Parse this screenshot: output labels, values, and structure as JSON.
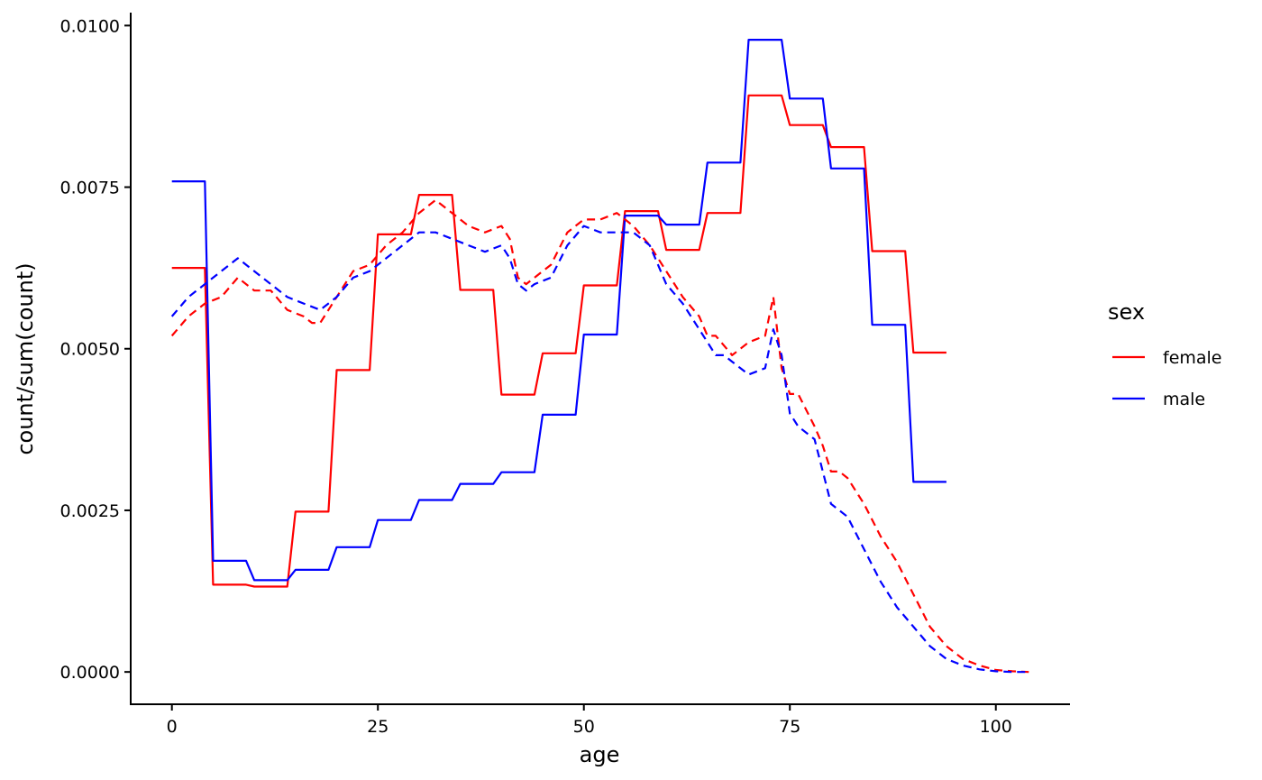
{
  "chart_data": {
    "type": "line",
    "title": "",
    "xlabel": "age",
    "ylabel": "count/sum(count)",
    "xlim": [
      -5,
      109
    ],
    "ylim": [
      -0.0005,
      0.0102
    ],
    "x_ticks": [
      0,
      25,
      50,
      75,
      100
    ],
    "x_tick_labels": [
      "0",
      "25",
      "50",
      "75",
      "100"
    ],
    "y_ticks": [
      0,
      0.0025,
      0.005,
      0.0075,
      0.01
    ],
    "y_tick_labels": [
      "0.0000",
      "0.0025",
      "0.0050",
      "0.0075",
      "0.0100"
    ],
    "grid": false,
    "legend": {
      "title": "sex",
      "position": "right",
      "entries": [
        {
          "label": "female",
          "color": "#ff0000"
        },
        {
          "label": "male",
          "color": "#0000ff"
        }
      ]
    },
    "series": [
      {
        "name": "female",
        "color": "#ff0000",
        "linetype": "solid",
        "x": [
          0,
          4,
          5,
          9,
          10,
          14,
          15,
          19,
          20,
          24,
          25,
          29,
          30,
          34,
          35,
          39,
          40,
          44,
          45,
          49,
          50,
          54,
          55,
          59,
          60,
          64,
          65,
          69,
          70,
          74,
          75,
          79,
          80,
          84,
          85,
          89,
          90,
          94
        ],
        "y": [
          0.00625,
          0.00625,
          0.00135,
          0.00135,
          0.00132,
          0.00132,
          0.00248,
          0.00248,
          0.00467,
          0.00467,
          0.00677,
          0.00677,
          0.00738,
          0.00738,
          0.00591,
          0.00591,
          0.00429,
          0.00429,
          0.00493,
          0.00493,
          0.00598,
          0.00598,
          0.00713,
          0.00713,
          0.00653,
          0.00653,
          0.0071,
          0.0071,
          0.00892,
          0.00892,
          0.00846,
          0.00846,
          0.00812,
          0.00812,
          0.00651,
          0.00651,
          0.00494,
          0.00494
        ]
      },
      {
        "name": "male",
        "color": "#0000ff",
        "linetype": "solid",
        "x": [
          0,
          4,
          5,
          9,
          10,
          14,
          15,
          19,
          20,
          24,
          25,
          29,
          30,
          34,
          35,
          39,
          40,
          44,
          45,
          49,
          50,
          54,
          55,
          59,
          60,
          64,
          65,
          69,
          70,
          74,
          75,
          79,
          80,
          84,
          85,
          89,
          90,
          94
        ],
        "y": [
          0.00759,
          0.00759,
          0.00172,
          0.00172,
          0.00142,
          0.00142,
          0.00158,
          0.00158,
          0.00193,
          0.00193,
          0.00235,
          0.00235,
          0.00266,
          0.00266,
          0.00291,
          0.00291,
          0.00309,
          0.00309,
          0.00398,
          0.00398,
          0.00522,
          0.00522,
          0.00706,
          0.00706,
          0.00692,
          0.00692,
          0.00788,
          0.00788,
          0.00978,
          0.00978,
          0.00887,
          0.00887,
          0.00779,
          0.00779,
          0.00537,
          0.00537,
          0.00294,
          0.00294
        ]
      },
      {
        "name": "female",
        "color": "#ff0000",
        "linetype": "dashed",
        "x": [
          0,
          2,
          4,
          6,
          8,
          10,
          12,
          14,
          16,
          17,
          18,
          20,
          22,
          24,
          26,
          28,
          30,
          32,
          34,
          36,
          38,
          40,
          41,
          42,
          43,
          44,
          46,
          48,
          50,
          52,
          54,
          56,
          58,
          60,
          62,
          64,
          65,
          66,
          68,
          70,
          72,
          73,
          74,
          75,
          76,
          78,
          79,
          80,
          81,
          82,
          84,
          86,
          88,
          90,
          92,
          94,
          96,
          98,
          100,
          102,
          104
        ],
        "y": [
          0.0052,
          0.0055,
          0.0057,
          0.0058,
          0.0061,
          0.0059,
          0.0059,
          0.0056,
          0.0055,
          0.0054,
          0.0054,
          0.0058,
          0.0062,
          0.0063,
          0.0066,
          0.0068,
          0.0071,
          0.0073,
          0.0071,
          0.0069,
          0.0068,
          0.0069,
          0.0067,
          0.0061,
          0.006,
          0.0061,
          0.0063,
          0.0068,
          0.007,
          0.007,
          0.0071,
          0.0069,
          0.0066,
          0.0062,
          0.0058,
          0.0055,
          0.0052,
          0.0052,
          0.0049,
          0.0051,
          0.0052,
          0.0058,
          0.0047,
          0.0043,
          0.0043,
          0.0038,
          0.0035,
          0.0031,
          0.0031,
          0.003,
          0.0026,
          0.0021,
          0.0017,
          0.0012,
          0.0007,
          0.0004,
          0.0002,
          0.0001,
          3e-05,
          1e-05,
          0.0
        ]
      },
      {
        "name": "male",
        "color": "#0000ff",
        "linetype": "dashed",
        "x": [
          0,
          2,
          4,
          6,
          8,
          9,
          10,
          11,
          12,
          14,
          16,
          18,
          20,
          22,
          24,
          26,
          28,
          30,
          32,
          34,
          36,
          38,
          40,
          41,
          42,
          43,
          44,
          46,
          48,
          50,
          52,
          54,
          56,
          58,
          60,
          62,
          64,
          66,
          67,
          68,
          70,
          72,
          73,
          74,
          75,
          76,
          78,
          79,
          80,
          82,
          84,
          86,
          88,
          90,
          92,
          94,
          96,
          98,
          100,
          102,
          104
        ],
        "y": [
          0.0055,
          0.0058,
          0.006,
          0.0062,
          0.0064,
          0.0063,
          0.0062,
          0.0061,
          0.006,
          0.0058,
          0.0057,
          0.0056,
          0.0058,
          0.0061,
          0.0062,
          0.0064,
          0.0066,
          0.0068,
          0.0068,
          0.0067,
          0.0066,
          0.0065,
          0.0066,
          0.0064,
          0.006,
          0.0059,
          0.006,
          0.0061,
          0.0066,
          0.0069,
          0.0068,
          0.0068,
          0.0068,
          0.0066,
          0.006,
          0.0057,
          0.0053,
          0.0049,
          0.0049,
          0.0048,
          0.0046,
          0.0047,
          0.0053,
          0.0049,
          0.004,
          0.0038,
          0.0036,
          0.0031,
          0.0026,
          0.0024,
          0.0019,
          0.0014,
          0.001,
          0.0007,
          0.0004,
          0.0002,
          0.0001,
          4e-05,
          1e-05,
          0.0,
          0.0
        ]
      }
    ]
  }
}
